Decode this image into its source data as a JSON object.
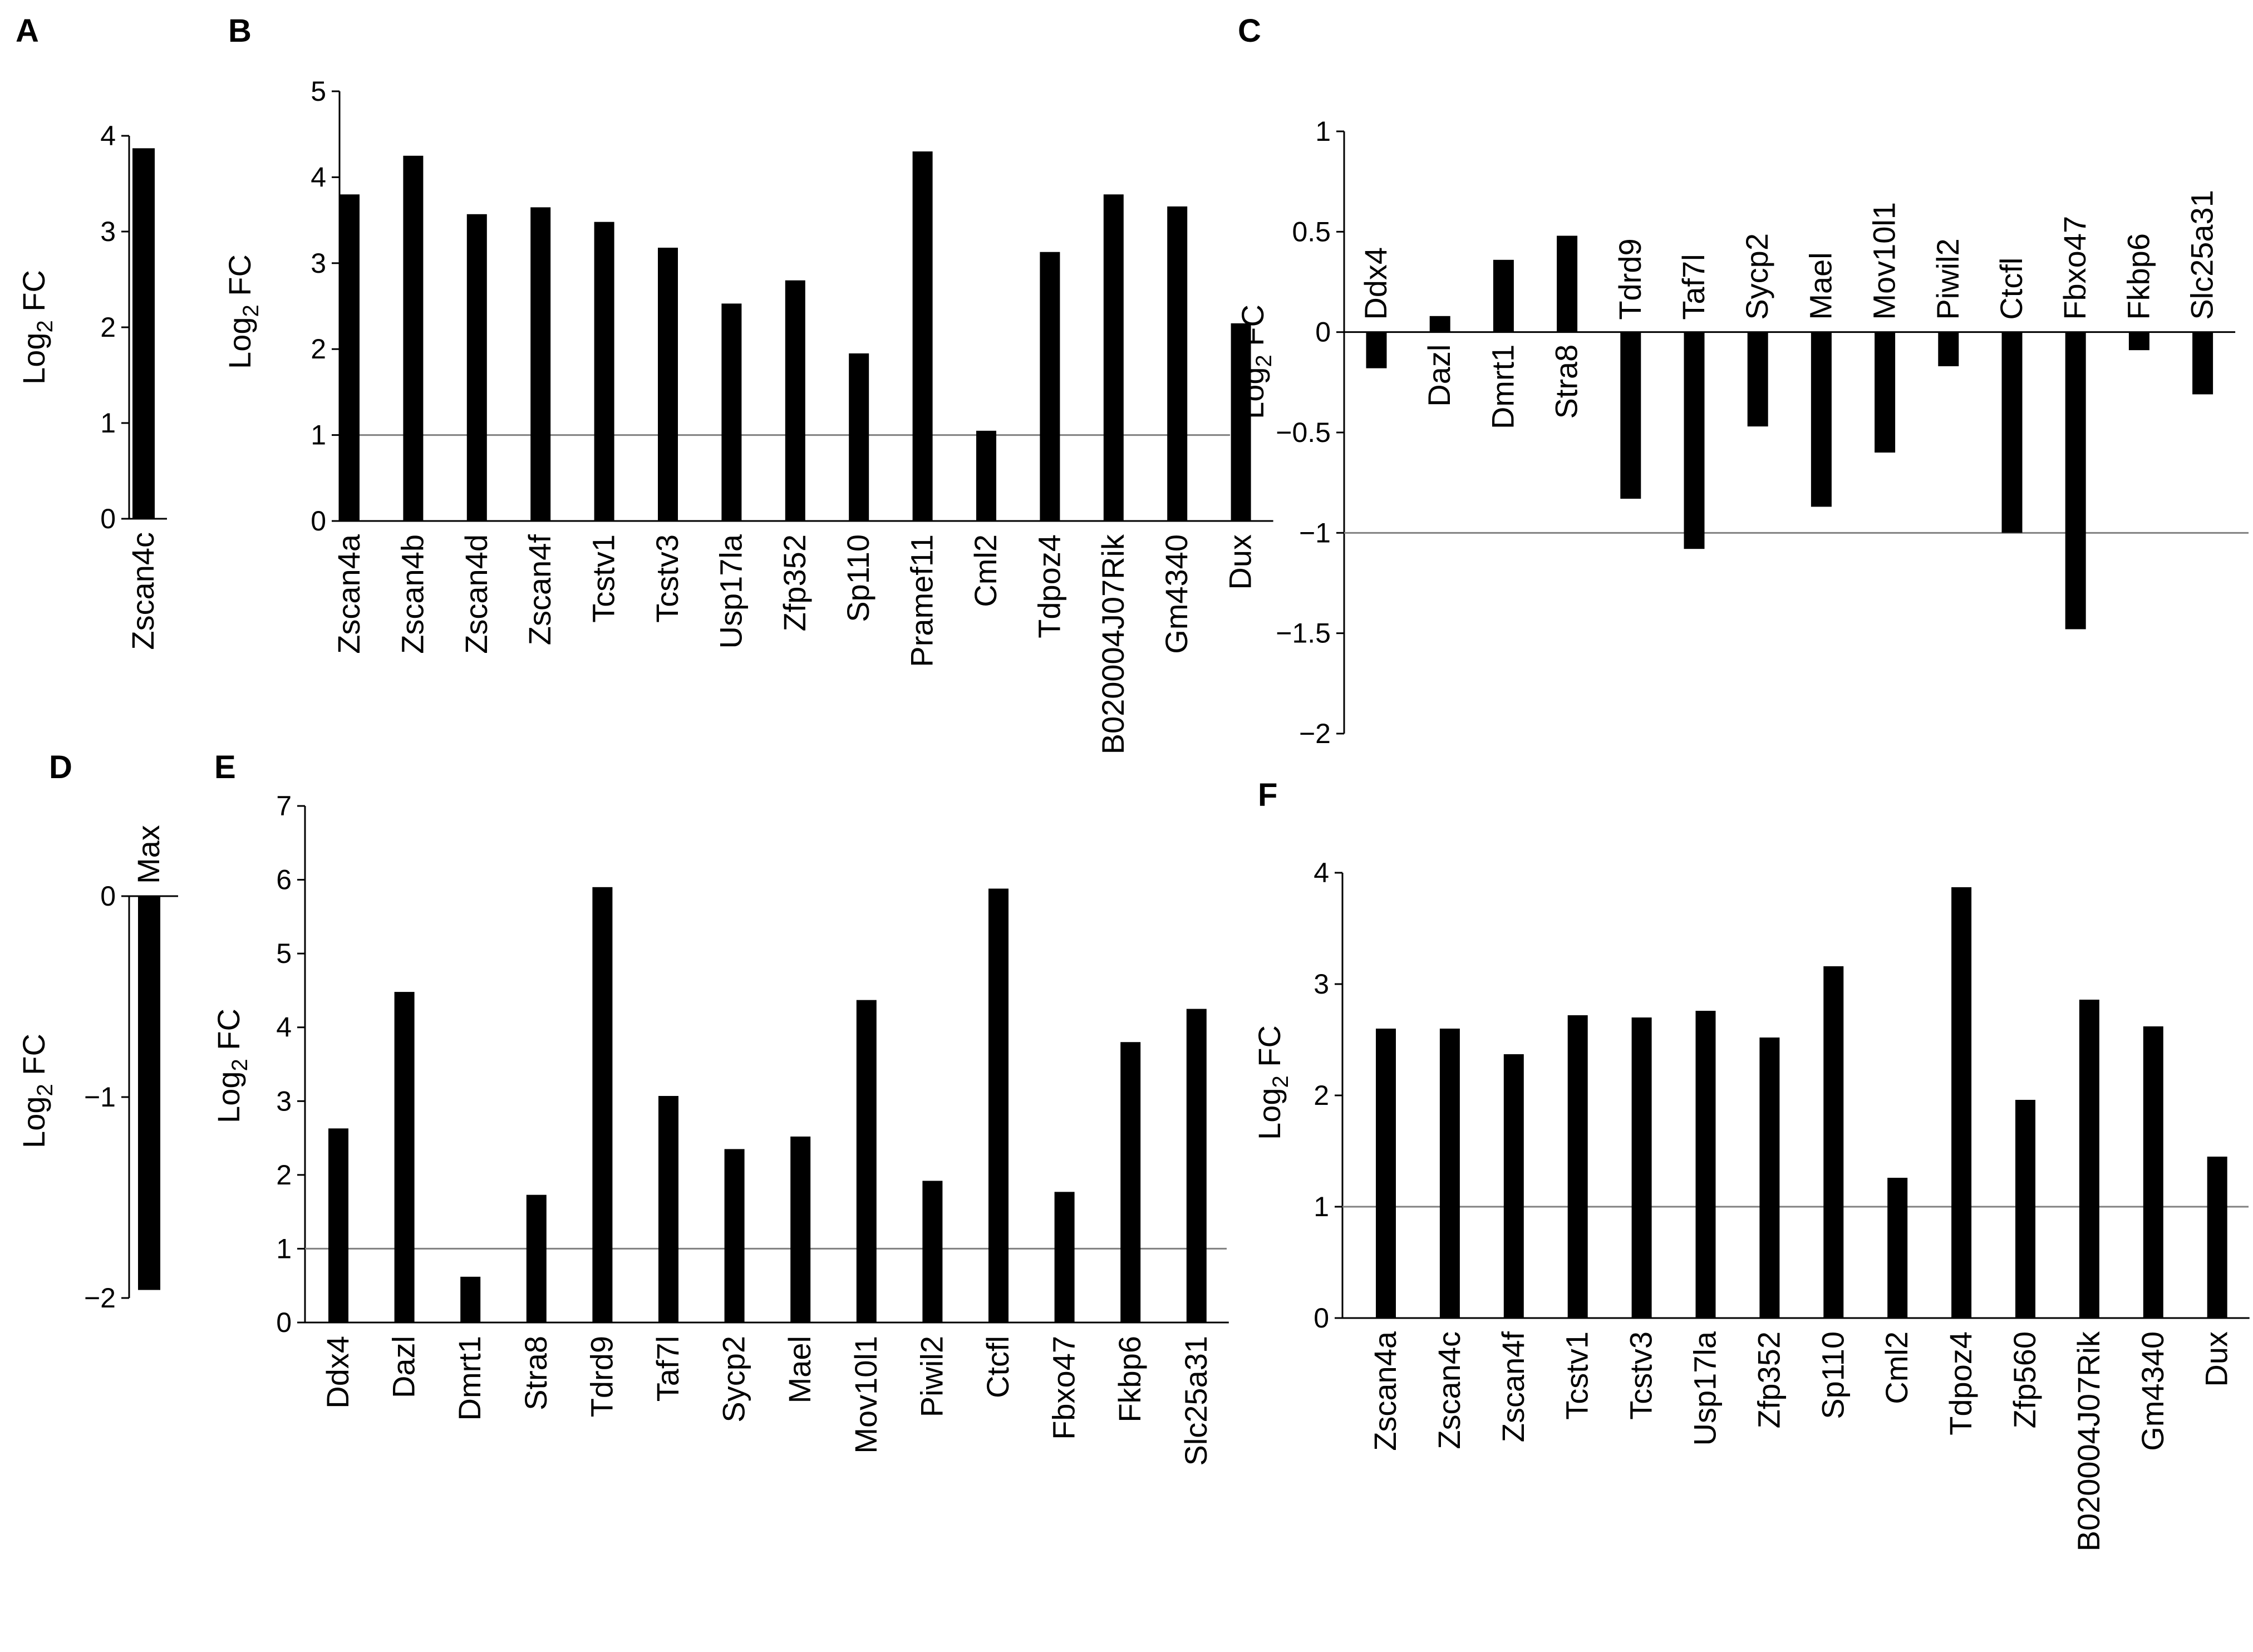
{
  "chart_data": [
    {
      "id": "A",
      "panel_label": "A",
      "type": "bar",
      "ylabel": "Log",
      "ylabel_sub": "2",
      "ylabel_rest": " FC",
      "ylim": [
        0,
        4
      ],
      "yticks": [
        0,
        1,
        2,
        3,
        4
      ],
      "tick_labels": [
        "0",
        "1",
        "2",
        "3",
        "4"
      ],
      "categories": [
        "Zscan4c"
      ],
      "values": [
        3.87
      ],
      "threshold": null,
      "label_mode": "below"
    },
    {
      "id": "B",
      "panel_label": "B",
      "type": "bar",
      "ylabel": "Log",
      "ylabel_sub": "2",
      "ylabel_rest": " FC",
      "ylim": [
        0,
        5
      ],
      "yticks": [
        0,
        1,
        2,
        3,
        4,
        5
      ],
      "tick_labels": [
        "0",
        "1",
        "2",
        "3",
        "4",
        "5"
      ],
      "categories": [
        "Zscan4a",
        "Zscan4b",
        "Zscan4d",
        "Zscan4f",
        "Tcstv1",
        "Tcstv3",
        "Usp17la",
        "Zfp352",
        "Sp110",
        "Pramef11",
        "Cml2",
        "Tdpoz4",
        "B020004J07Rik",
        "Gm4340",
        "Dux"
      ],
      "values": [
        3.8,
        4.25,
        3.57,
        3.65,
        3.48,
        3.18,
        2.53,
        2.8,
        1.95,
        4.3,
        1.05,
        3.13,
        3.8,
        3.66,
        2.3
      ],
      "threshold": 1,
      "label_mode": "below"
    },
    {
      "id": "C",
      "panel_label": "C",
      "type": "bar",
      "ylabel": "Log",
      "ylabel_sub": "2",
      "ylabel_rest": " FC",
      "ylim": [
        -2,
        1
      ],
      "yticks": [
        -2,
        -1.5,
        -1,
        -0.5,
        0,
        0.5,
        1
      ],
      "tick_labels": [
        "−2",
        "−1.5",
        "−1",
        "−0.5",
        "0",
        "0.5",
        "1"
      ],
      "categories": [
        "Ddx4",
        "Dazl",
        "Dmrt1",
        "Stra8",
        "Tdrd9",
        "Taf7l",
        "Sycp2",
        "Mael",
        "Mov10l1",
        "Piwil2",
        "Ctcfl",
        "Fbxo47",
        "Fkbp6",
        "Slc25a31"
      ],
      "values": [
        -0.18,
        0.08,
        0.36,
        0.48,
        -0.83,
        -1.08,
        -0.47,
        -0.87,
        -0.6,
        -0.17,
        -1.0,
        -1.48,
        -0.09,
        -0.31
      ],
      "threshold": -1,
      "label_mode": "opposite"
    },
    {
      "id": "D",
      "panel_label": "D",
      "type": "bar",
      "ylabel": "Log",
      "ylabel_sub": "2",
      "ylabel_rest": " FC",
      "ylim": [
        -2,
        0
      ],
      "yticks": [
        -2,
        -1,
        0
      ],
      "tick_labels": [
        "−2",
        "−1",
        "0"
      ],
      "categories": [
        "Max"
      ],
      "values": [
        -1.96
      ],
      "threshold": null,
      "label_mode": "above"
    },
    {
      "id": "E",
      "panel_label": "E",
      "type": "bar",
      "ylabel": "Log",
      "ylabel_sub": "2",
      "ylabel_rest": " FC",
      "ylim": [
        0,
        7
      ],
      "yticks": [
        0,
        1,
        2,
        3,
        4,
        5,
        6,
        7
      ],
      "tick_labels": [
        "0",
        "1",
        "2",
        "3",
        "4",
        "5",
        "6",
        "7"
      ],
      "categories": [
        "Ddx4",
        "Dazl",
        "Dmrt1",
        "Stra8",
        "Tdrd9",
        "Taf7l",
        "Sycp2",
        "Mael",
        "Mov10l1",
        "Piwil2",
        "Ctcfl",
        "Fbxo47",
        "Fkbp6",
        "Slc25a31"
      ],
      "values": [
        2.63,
        4.48,
        0.62,
        1.73,
        5.9,
        3.07,
        2.35,
        2.52,
        4.37,
        1.92,
        5.88,
        1.77,
        3.8,
        4.25
      ],
      "threshold": 1,
      "label_mode": "below"
    },
    {
      "id": "F",
      "panel_label": "F",
      "type": "bar",
      "ylabel": "Log",
      "ylabel_sub": "2",
      "ylabel_rest": " FC",
      "ylim": [
        0,
        4
      ],
      "yticks": [
        0,
        1,
        2,
        3,
        4
      ],
      "tick_labels": [
        "0",
        "1",
        "2",
        "3",
        "4"
      ],
      "categories": [
        "Zscan4a",
        "Zscan4c",
        "Zscan4f",
        "Tcstv1",
        "Tcstv3",
        "Usp17la",
        "Zfp352",
        "Sp110",
        "Cml2",
        "Tdpoz4",
        "Zfp560",
        "B020004J07Rik",
        "Gm4340",
        "Dux"
      ],
      "values": [
        2.6,
        2.6,
        2.37,
        2.72,
        2.7,
        2.76,
        2.52,
        3.16,
        1.26,
        3.87,
        1.96,
        2.86,
        2.62,
        1.45
      ],
      "threshold": 1,
      "label_mode": "below"
    }
  ]
}
